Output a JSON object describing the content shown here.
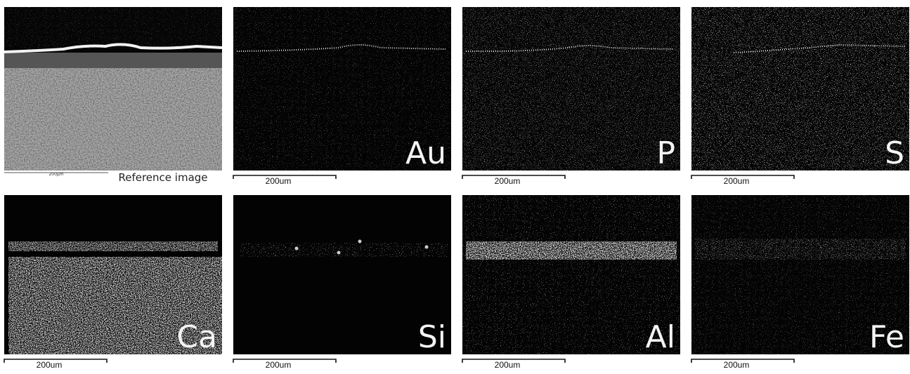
{
  "reference": {
    "scale_label": "200µm",
    "caption": "Reference image"
  },
  "maps": [
    {
      "element": "Au",
      "scale_label": "200um"
    },
    {
      "element": "P",
      "scale_label": "200um"
    },
    {
      "element": "S",
      "scale_label": "200um"
    },
    {
      "element": "Ca",
      "scale_label": "200um"
    },
    {
      "element": "Si",
      "scale_label": "200um"
    },
    {
      "element": "Al",
      "scale_label": "200um"
    },
    {
      "element": "Fe",
      "scale_label": "200um"
    }
  ]
}
